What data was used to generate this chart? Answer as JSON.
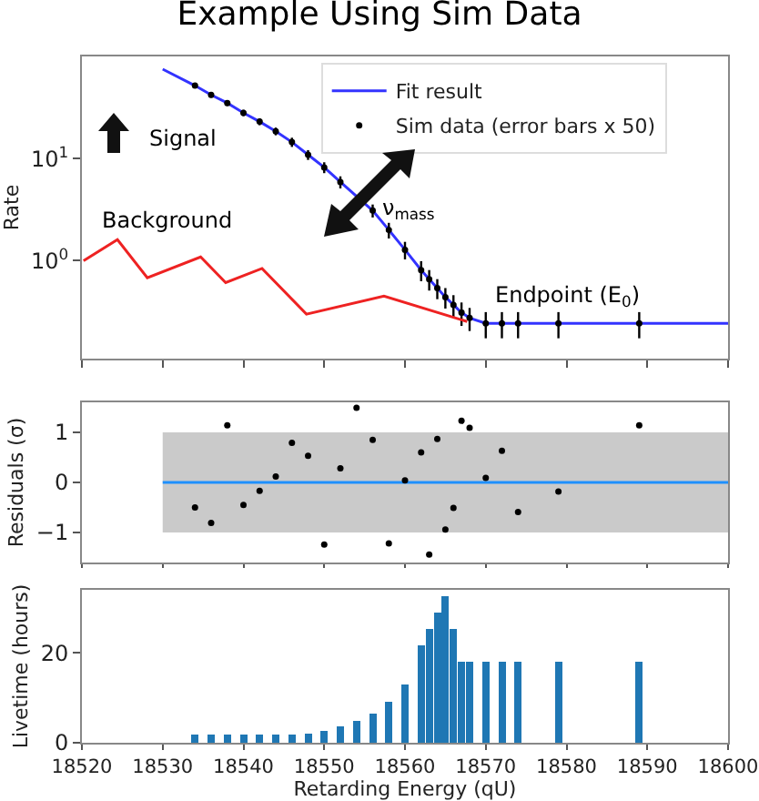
{
  "chart_data": [
    {
      "type": "line",
      "title": "Example Using Sim Data",
      "ylabel": "Rate",
      "log": "y",
      "legend": "top right",
      "tick_labels": "y",
      "xlim": [
        18520,
        18600
      ],
      "ylim": [
        0.11,
        100
      ],
      "xticks": [
        {
          "value": 18520,
          "label": null
        },
        {
          "value": 18530,
          "label": null
        },
        {
          "value": 18540,
          "label": null
        },
        {
          "value": 18550,
          "label": null
        },
        {
          "value": 18560,
          "label": null
        },
        {
          "value": 18570,
          "label": null
        },
        {
          "value": 18580,
          "label": null
        },
        {
          "value": 18590,
          "label": null
        },
        {
          "value": 18600,
          "label": null
        }
      ],
      "yticks": [
        {
          "value": 1,
          "label": "10$^{0}$"
        },
        {
          "value": 10,
          "label": "10$^{1}$"
        }
      ],
      "annotations": [
        "Signal",
        "Background",
        "ν$_{mass}$",
        "Endpoint (E$_{0}$)"
      ],
      "series": [
        {
          "name": "Fit result",
          "type": "line",
          "color": "#3333ff",
          "x": [
            18530,
            18534,
            18536,
            18538,
            18540,
            18542,
            18544,
            18546,
            18548,
            18550,
            18552,
            18556,
            18558,
            18560,
            18562,
            18563,
            18564,
            18565,
            18566,
            18567,
            18568,
            18570,
            18600
          ],
          "values": [
            75,
            51.8,
            42,
            35,
            28,
            23,
            18.5,
            14.5,
            10.9,
            8.2,
            5.9,
            3.1,
            2.0,
            1.28,
            0.81,
            0.66,
            0.54,
            0.44,
            0.37,
            0.31,
            0.275,
            0.244,
            0.244
          ]
        },
        {
          "name": "Sim data (error bars x 50)",
          "type": "scatter",
          "color": "#000000",
          "marker": "circle",
          "x": [
            18534,
            18536,
            18538,
            18540,
            18542,
            18544,
            18546,
            18548,
            18550,
            18552,
            18554,
            18556,
            18558,
            18560,
            18562,
            18563,
            18564,
            18565,
            18566,
            18567,
            18568,
            18570,
            18572,
            18574,
            18579,
            18589
          ],
          "values": [
            51.8,
            42,
            35,
            28,
            23,
            18.5,
            14.5,
            10.9,
            8.2,
            5.9,
            null,
            3.1,
            2.0,
            1.28,
            0.81,
            0.66,
            0.54,
            0.44,
            0.37,
            0.31,
            0.275,
            0.244,
            0.244,
            0.244,
            0.244,
            0.244
          ],
          "errors": [
            3,
            2.5,
            2.2,
            2,
            1.8,
            1.6,
            1.5,
            1.2,
            1,
            0.8,
            null,
            0.45,
            0.35,
            0.25,
            0.18,
            0.15,
            0.12,
            0.1,
            0.09,
            0.08,
            0.07,
            0.07,
            0.07,
            0.07,
            0.07,
            0.07
          ]
        },
        {
          "type": "line",
          "color": "#ee2222",
          "x": [
            18520.2,
            18524.4,
            18528.1,
            18534.7,
            18537.8,
            18542.3,
            18547.8,
            18557.4,
            18567.7
          ],
          "values": [
            1.0,
            1.61,
            0.68,
            1.09,
            0.61,
            0.84,
            0.3,
            0.45,
            0.254
          ]
        }
      ]
    },
    {
      "type": "scatter",
      "ylabel": "Residuals (σ)",
      "tick_labels": "y",
      "xlim": [
        18520,
        18600
      ],
      "ylim": [
        -1.6,
        1.6
      ],
      "yticks": [
        {
          "value": -1,
          "label": "−1"
        },
        0,
        1
      ],
      "xticks": [
        {
          "value": 18520,
          "label": null
        },
        {
          "value": 18530,
          "label": null
        },
        {
          "value": 18540,
          "label": null
        },
        {
          "value": 18550,
          "label": null
        },
        {
          "value": 18560,
          "label": null
        },
        {
          "value": 18570,
          "label": null
        },
        {
          "value": 18580,
          "label": null
        },
        {
          "value": 18590,
          "label": null
        },
        {
          "value": 18600,
          "label": null
        }
      ],
      "series": [
        {
          "type": "line",
          "color": "#1e90ff",
          "x": [
            18530,
            18600
          ],
          "values": [
            0,
            0
          ],
          "lower": [
            -1,
            -1
          ],
          "upper": [
            1,
            1
          ]
        },
        {
          "type": "scatter",
          "color": "#000000",
          "marker": "circle",
          "x": [
            18534,
            18536,
            18538,
            18540,
            18542,
            18544,
            18546,
            18548,
            18550,
            18552,
            18554,
            18556,
            18558,
            18560,
            18562,
            18563,
            18564,
            18565,
            18566,
            18567,
            18568,
            18570,
            18572,
            18574,
            18579,
            18589
          ],
          "values": [
            -0.5,
            -0.81,
            1.14,
            -0.45,
            -0.17,
            0.12,
            0.79,
            0.53,
            -1.24,
            0.28,
            1.49,
            0.85,
            -1.22,
            0.04,
            0.6,
            -1.44,
            0.87,
            -0.94,
            -0.51,
            1.23,
            1.09,
            0.09,
            0.63,
            -0.59,
            -0.18,
            1.14
          ]
        }
      ]
    },
    {
      "type": "bar",
      "xlabel": "Retarding Energy (qU)",
      "ylabel": "Livetime (hours)",
      "xlim": [
        18520,
        18600
      ],
      "ylim": [
        0,
        34
      ],
      "yticks": [
        0,
        20
      ],
      "xticks": [
        18520,
        18530,
        18540,
        18550,
        18560,
        18570,
        18580,
        18590,
        18600
      ],
      "x": [
        18534,
        18536,
        18538,
        18540,
        18542,
        18544,
        18546,
        18548,
        18550,
        18552,
        18554,
        18556,
        18558,
        18560,
        18562,
        18563,
        18564,
        18565,
        18566,
        18567,
        18568,
        18570,
        18572,
        18574,
        18579,
        18589
      ],
      "values": [
        1.8,
        1.8,
        1.8,
        1.8,
        1.8,
        1.8,
        1.8,
        2.0,
        2.6,
        3.7,
        4.8,
        6.4,
        9.1,
        12.9,
        21.6,
        25.3,
        29,
        32.5,
        25.3,
        18,
        18,
        18,
        18,
        18,
        18,
        18
      ],
      "color": "#1f77b4"
    }
  ]
}
